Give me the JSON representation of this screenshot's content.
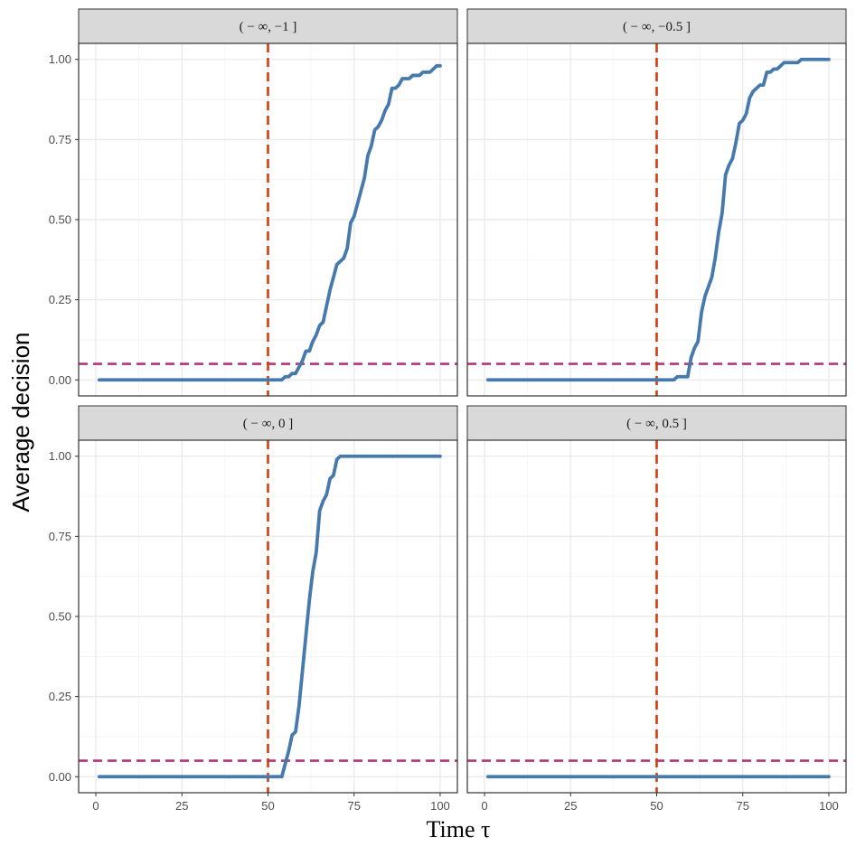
{
  "chart_data": {
    "type": "line",
    "xlabel": "Time τ",
    "ylabel": "Average decision",
    "xlim": [
      -5,
      105
    ],
    "ylim": [
      -0.05,
      1.05
    ],
    "x_ticks": [
      "0",
      "25",
      "50",
      "75",
      "100"
    ],
    "x_tick_values": [
      0,
      25,
      50,
      75,
      100
    ],
    "y_ticks": [
      "0.00",
      "0.25",
      "0.50",
      "0.75",
      "1.00"
    ],
    "y_tick_values": [
      0,
      0.25,
      0.5,
      0.75,
      1.0
    ],
    "grid": true,
    "reference_lines": {
      "vertical_x": 50,
      "vertical_color": "#d73b0e",
      "horizontal_y": 0.05,
      "horizontal_color": "#b5357a"
    },
    "line_color": "#4679ad",
    "strip_color": "#d9d9d9",
    "panels": [
      {
        "label": "( − ∞,  −1 ]",
        "x": [
          1,
          54,
          55,
          56,
          57,
          58,
          59,
          60,
          61,
          62,
          63,
          64,
          65,
          66,
          67,
          68,
          69,
          70,
          71,
          72,
          73,
          74,
          75,
          76,
          77,
          78,
          79,
          80,
          81,
          82,
          83,
          84,
          85,
          86,
          87,
          88,
          89,
          90,
          91,
          92,
          93,
          94,
          95,
          96,
          97,
          98,
          99,
          100
        ],
        "y": [
          0,
          0,
          0.01,
          0.01,
          0.02,
          0.02,
          0.04,
          0.06,
          0.09,
          0.09,
          0.12,
          0.14,
          0.17,
          0.18,
          0.23,
          0.28,
          0.32,
          0.36,
          0.37,
          0.38,
          0.41,
          0.49,
          0.51,
          0.55,
          0.59,
          0.63,
          0.7,
          0.73,
          0.78,
          0.79,
          0.81,
          0.84,
          0.86,
          0.91,
          0.91,
          0.92,
          0.94,
          0.94,
          0.94,
          0.95,
          0.95,
          0.95,
          0.96,
          0.96,
          0.96,
          0.97,
          0.98,
          0.98
        ]
      },
      {
        "label": "( − ∞,  −0.5 ]",
        "x": [
          1,
          55,
          56,
          57,
          58,
          59,
          60,
          61,
          62,
          63,
          64,
          65,
          66,
          67,
          68,
          69,
          70,
          71,
          72,
          73,
          74,
          75,
          76,
          77,
          78,
          79,
          80,
          81,
          82,
          83,
          84,
          85,
          86,
          87,
          88,
          89,
          90,
          91,
          92,
          100
        ],
        "y": [
          0,
          0,
          0.01,
          0.01,
          0.01,
          0.01,
          0.07,
          0.1,
          0.12,
          0.21,
          0.26,
          0.29,
          0.32,
          0.38,
          0.46,
          0.52,
          0.64,
          0.67,
          0.69,
          0.74,
          0.8,
          0.81,
          0.83,
          0.88,
          0.9,
          0.91,
          0.92,
          0.92,
          0.96,
          0.96,
          0.97,
          0.97,
          0.98,
          0.99,
          0.99,
          0.99,
          0.99,
          0.99,
          1.0,
          1.0
        ]
      },
      {
        "label": "( − ∞,  0 ]",
        "x": [
          1,
          54,
          55,
          56,
          57,
          58,
          59,
          60,
          61,
          62,
          63,
          64,
          65,
          66,
          67,
          68,
          69,
          70,
          71,
          72,
          100
        ],
        "y": [
          0,
          0,
          0.04,
          0.08,
          0.13,
          0.14,
          0.22,
          0.33,
          0.44,
          0.55,
          0.64,
          0.7,
          0.83,
          0.86,
          0.88,
          0.93,
          0.94,
          0.99,
          1.0,
          1.0,
          1.0
        ]
      },
      {
        "label": "( − ∞,  0.5 ]",
        "x": [
          1,
          100
        ],
        "y": [
          0,
          0
        ]
      }
    ]
  }
}
